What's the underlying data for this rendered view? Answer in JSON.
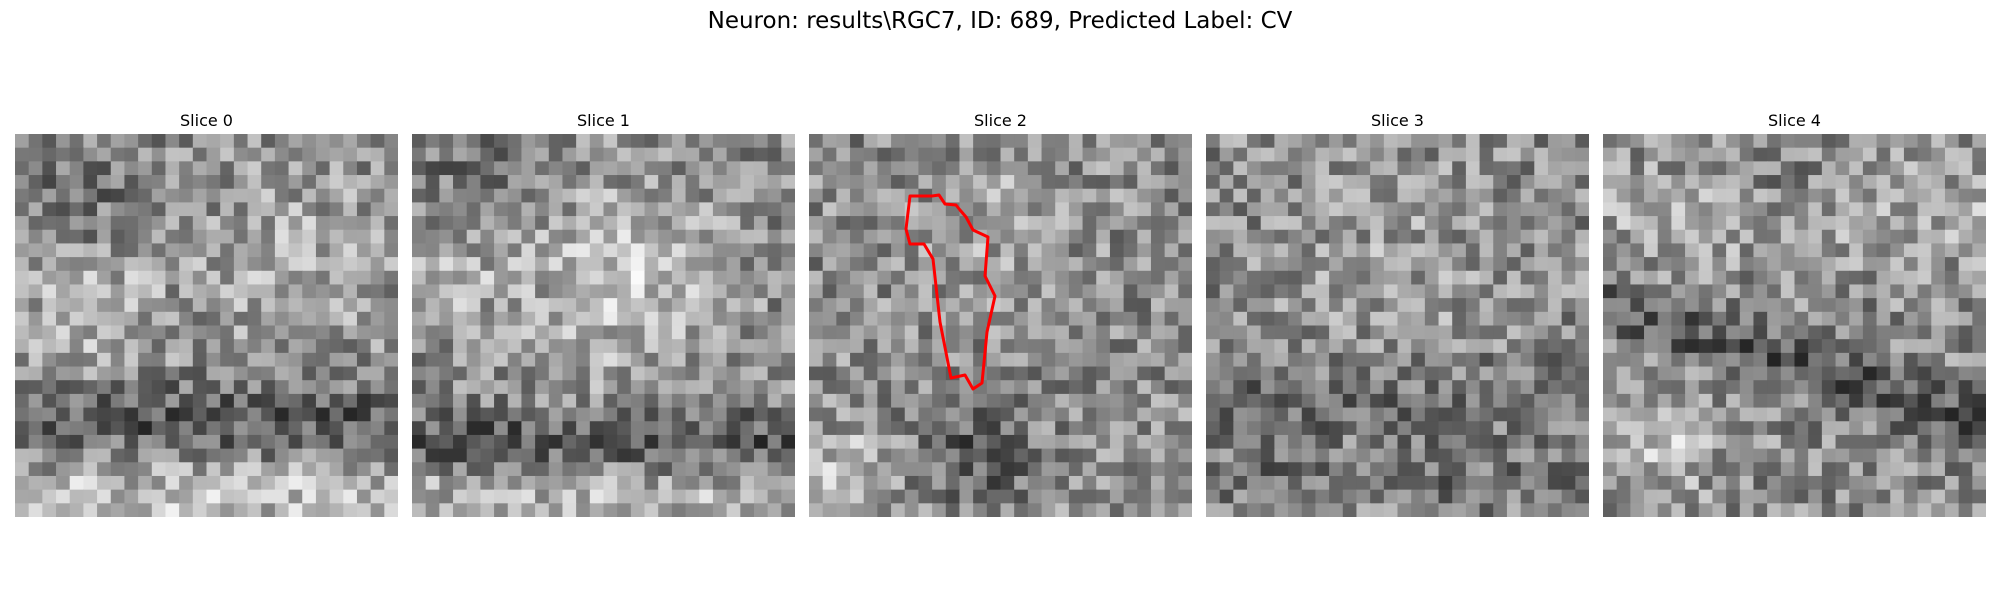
{
  "figure": {
    "title": "Neuron: results\\RGC7, ID: 689, Predicted Label: CV"
  },
  "panels": [
    {
      "title": "Slice 0",
      "seed": 11,
      "contour": false
    },
    {
      "title": "Slice 1",
      "seed": 23,
      "contour": false
    },
    {
      "title": "Slice 2",
      "seed": 37,
      "contour": true
    },
    {
      "title": "Slice 3",
      "seed": 51,
      "contour": false
    },
    {
      "title": "Slice 4",
      "seed": 67,
      "contour": false
    }
  ],
  "colors": {
    "contour": "#ff0000",
    "background": "#ffffff"
  },
  "grid_cells": 28
}
